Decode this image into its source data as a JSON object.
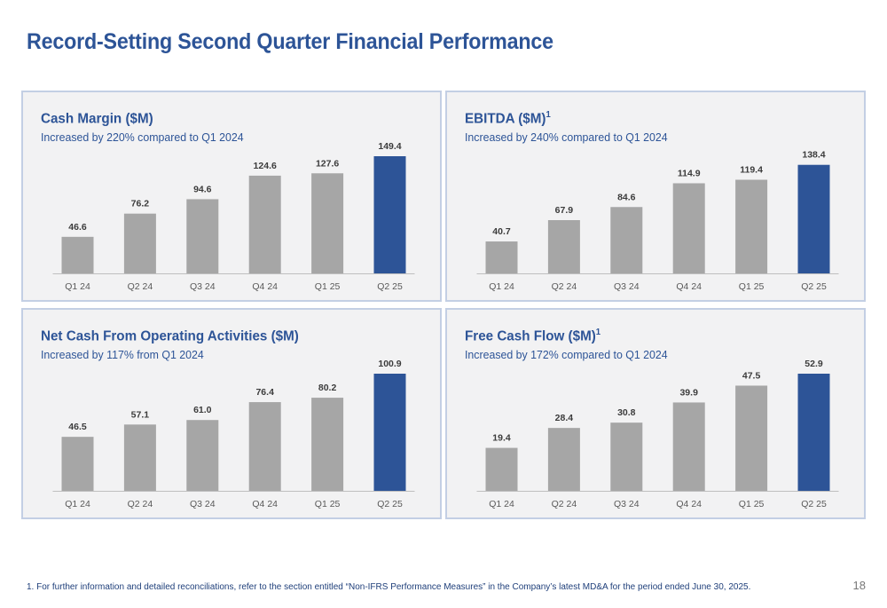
{
  "page": {
    "title": "Record-Setting Second Quarter Financial Performance",
    "footnote": "1. For further information and detailed reconciliations, refer to the section entitled “Non-IFRS Performance Measures” in the Company’s latest MD&A for the period ended June 30, 2025.",
    "page_number": "18"
  },
  "colors": {
    "bar_default": "#a6a6a6",
    "bar_highlight": "#2d5497",
    "title": "#2d5497",
    "panel_bg": "#f2f2f3",
    "panel_border": "#c3cfe4"
  },
  "chart_data": [
    {
      "type": "bar",
      "title": "Cash Margin ($M)",
      "superscript": "",
      "subtitle": "Increased by 220% compared to Q1 2024",
      "categories": [
        "Q1 24",
        "Q2 24",
        "Q3 24",
        "Q4 24",
        "Q1 25",
        "Q2 25"
      ],
      "values": [
        46.6,
        76.2,
        94.6,
        124.6,
        127.6,
        149.4
      ],
      "labels": [
        "46.6",
        "76.2",
        "94.6",
        "124.6",
        "127.6",
        "149.4"
      ],
      "highlight_index": 5,
      "ylim": [
        0,
        149.4
      ]
    },
    {
      "type": "bar",
      "title": "EBITDA ($M)",
      "superscript": "1",
      "subtitle": "Increased by 240% compared to Q1 2024",
      "categories": [
        "Q1 24",
        "Q2 24",
        "Q3 24",
        "Q4 24",
        "Q1 25",
        "Q2 25"
      ],
      "values": [
        40.7,
        67.9,
        84.6,
        114.9,
        119.4,
        138.4
      ],
      "labels": [
        "40.7",
        "67.9",
        "84.6",
        "114.9",
        "119.4",
        "138.4"
      ],
      "highlight_index": 5,
      "ylim": [
        0,
        149.4
      ]
    },
    {
      "type": "bar",
      "title": "Net Cash From Operating Activities ($M)",
      "superscript": "",
      "subtitle": "Increased by 117% from Q1 2024",
      "categories": [
        "Q1 24",
        "Q2 24",
        "Q3 24",
        "Q4 24",
        "Q1 25",
        "Q2 25"
      ],
      "values": [
        46.5,
        57.1,
        61.0,
        76.4,
        80.2,
        100.9
      ],
      "labels": [
        "46.5",
        "57.1",
        "61.0",
        "76.4",
        "80.2",
        "100.9"
      ],
      "highlight_index": 5,
      "ylim": [
        0,
        100.9
      ]
    },
    {
      "type": "bar",
      "title": "Free Cash Flow ($M)",
      "superscript": "1",
      "subtitle": "Increased by 172% compared to Q1 2024",
      "categories": [
        "Q1 24",
        "Q2 24",
        "Q3 24",
        "Q4 24",
        "Q1 25",
        "Q2 25"
      ],
      "values": [
        19.4,
        28.4,
        30.8,
        39.9,
        47.5,
        52.9
      ],
      "labels": [
        "19.4",
        "28.4",
        "30.8",
        "39.9",
        "47.5",
        "52.9"
      ],
      "highlight_index": 5,
      "ylim": [
        0,
        52.9
      ]
    }
  ]
}
